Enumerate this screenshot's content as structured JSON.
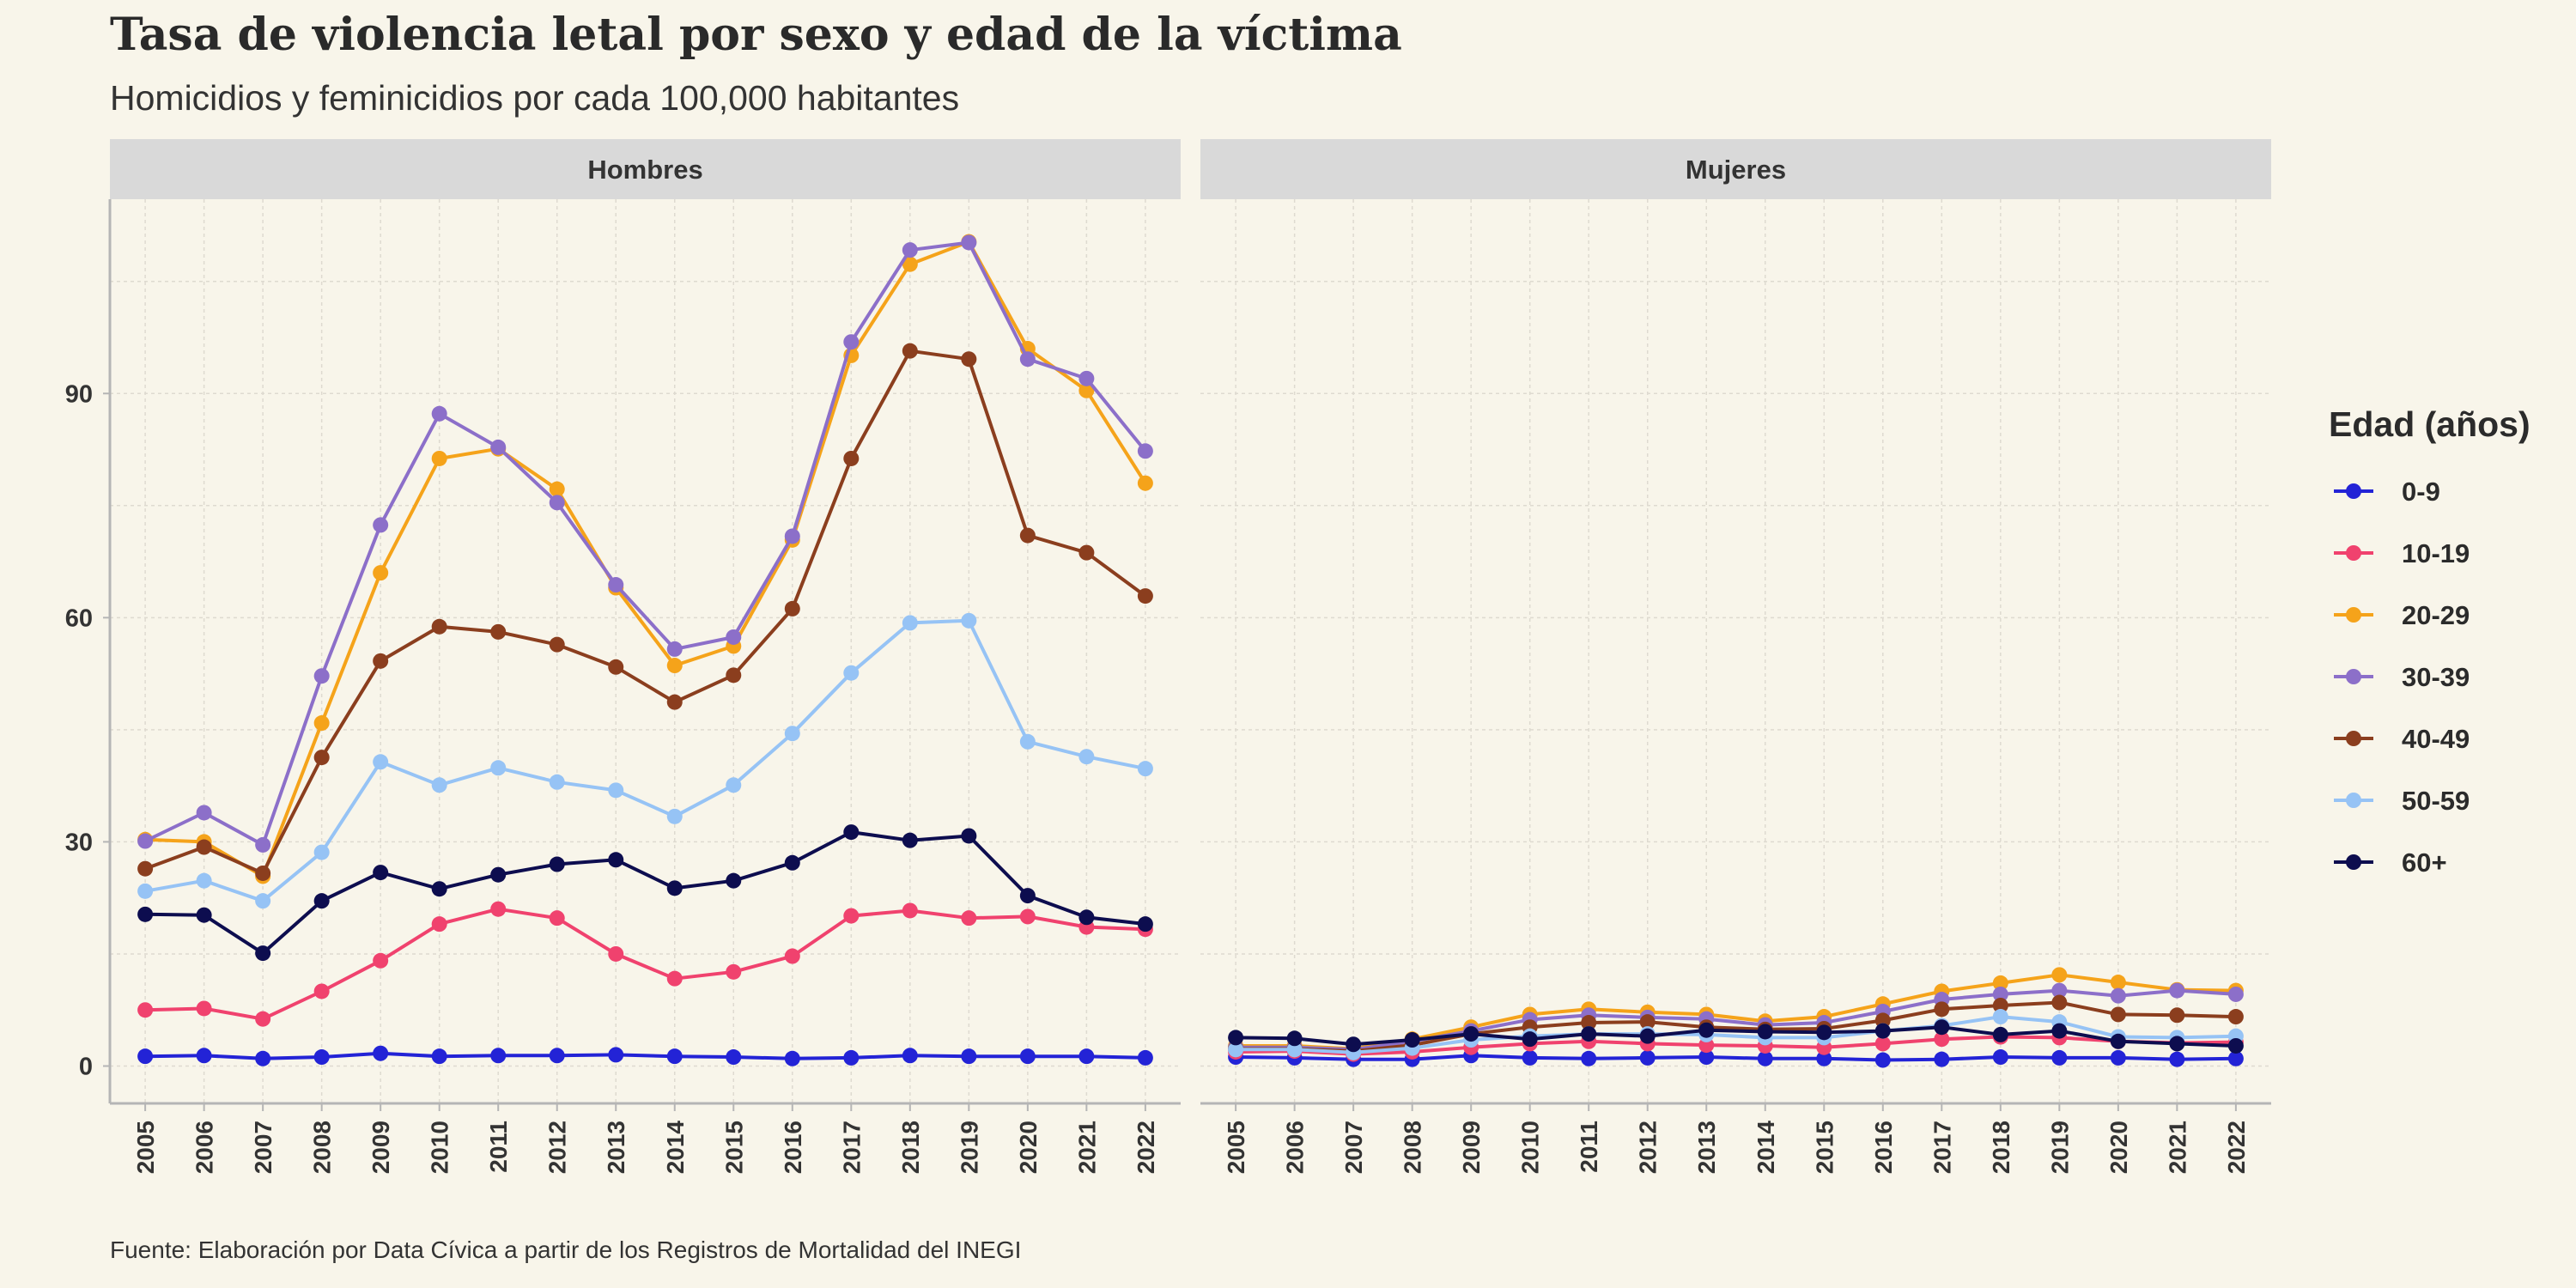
{
  "title": "Tasa de violencia letal por sexo y edad de la víctima",
  "subtitle": "Homicidios y feminicidios por cada 100,000 habitantes",
  "caption": "Fuente: Elaboración por Data Cívica a partir de los Registros de Mortalidad del INEGI",
  "chart_data": {
    "type": "line",
    "facets": [
      "Hombres",
      "Mujeres"
    ],
    "x": [
      2005,
      2006,
      2007,
      2008,
      2009,
      2010,
      2011,
      2012,
      2013,
      2014,
      2015,
      2016,
      2017,
      2018,
      2019,
      2020,
      2021,
      2022
    ],
    "y_ticks": [
      0,
      30,
      60,
      90
    ],
    "ylim": [
      -5,
      116
    ],
    "grid": true,
    "legend": {
      "title": "Edad (años)",
      "position": "right"
    },
    "series": [
      {
        "name": "0-9",
        "color": "#2323d6",
        "values": {
          "Hombres": [
            1.3,
            1.4,
            1.0,
            1.2,
            1.7,
            1.3,
            1.4,
            1.4,
            1.5,
            1.3,
            1.2,
            1.0,
            1.1,
            1.4,
            1.3,
            1.3,
            1.3,
            1.1
          ],
          "Mujeres": [
            1.2,
            1.1,
            0.9,
            0.9,
            1.4,
            1.1,
            1.0,
            1.1,
            1.2,
            1.0,
            1.0,
            0.8,
            0.9,
            1.2,
            1.1,
            1.1,
            0.9,
            1.0
          ]
        }
      },
      {
        "name": "10-19",
        "color": "#f0426e",
        "values": {
          "Hombres": [
            7.5,
            7.7,
            6.3,
            10.0,
            14.1,
            19.0,
            21.0,
            19.8,
            15.0,
            11.7,
            12.6,
            14.7,
            20.1,
            20.8,
            19.8,
            20.0,
            18.6,
            18.3
          ],
          "Mujeres": [
            1.9,
            2.0,
            1.6,
            1.9,
            2.5,
            3.0,
            3.3,
            3.0,
            2.8,
            2.7,
            2.5,
            3.0,
            3.6,
            3.9,
            3.8,
            3.3,
            3.1,
            3.2
          ]
        }
      },
      {
        "name": "20-29",
        "color": "#f5a31a",
        "values": {
          "Hombres": [
            30.3,
            30.0,
            25.4,
            45.9,
            66.0,
            81.3,
            82.6,
            77.2,
            64.0,
            53.6,
            56.2,
            70.4,
            95.1,
            107.3,
            110.3,
            96.0,
            90.4,
            78.0
          ],
          "Mujeres": [
            2.7,
            2.7,
            2.3,
            3.6,
            5.2,
            6.9,
            7.6,
            7.2,
            6.9,
            6.0,
            6.6,
            8.3,
            10.0,
            11.1,
            12.2,
            11.2,
            10.2,
            10.1
          ]
        }
      },
      {
        "name": "30-39",
        "color": "#8c6fc9",
        "values": {
          "Hombres": [
            30.1,
            33.9,
            29.6,
            52.2,
            72.4,
            87.3,
            82.8,
            75.4,
            64.4,
            55.8,
            57.4,
            70.9,
            96.9,
            109.2,
            110.2,
            94.6,
            92.0,
            82.3
          ],
          "Mujeres": [
            2.5,
            2.5,
            2.2,
            3.3,
            4.7,
            6.2,
            6.8,
            6.5,
            6.3,
            5.5,
            5.8,
            7.3,
            8.9,
            9.6,
            10.1,
            9.4,
            10.1,
            9.6
          ]
        }
      },
      {
        "name": "40-49",
        "color": "#8b3e1e",
        "values": {
          "Hombres": [
            26.4,
            29.3,
            25.8,
            41.3,
            54.2,
            58.8,
            58.1,
            56.4,
            53.4,
            48.7,
            52.3,
            61.2,
            81.3,
            95.7,
            94.6,
            71.0,
            68.7,
            62.9
          ],
          "Mujeres": [
            2.3,
            2.3,
            2.0,
            2.8,
            4.3,
            5.2,
            5.8,
            5.9,
            5.2,
            4.9,
            5.0,
            6.1,
            7.6,
            8.1,
            8.5,
            6.9,
            6.8,
            6.6
          ]
        }
      },
      {
        "name": "50-59",
        "color": "#96c3f5",
        "values": {
          "Hombres": [
            23.4,
            24.8,
            22.1,
            28.6,
            40.7,
            37.6,
            39.9,
            38.0,
            36.9,
            33.4,
            37.6,
            44.5,
            52.6,
            59.3,
            59.6,
            43.4,
            41.4,
            39.8
          ],
          "Mujeres": [
            2.2,
            2.2,
            1.8,
            2.4,
            3.5,
            4.0,
            4.3,
            4.3,
            4.2,
            3.8,
            3.8,
            4.7,
            5.4,
            6.6,
            5.9,
            3.9,
            3.8,
            4.0
          ]
        }
      },
      {
        "name": "60+",
        "color": "#0d0d4f",
        "values": {
          "Hombres": [
            20.3,
            20.2,
            15.1,
            22.1,
            25.9,
            23.7,
            25.6,
            27.0,
            27.6,
            23.8,
            24.8,
            27.2,
            31.3,
            30.2,
            30.8,
            22.8,
            19.9,
            19.0
          ],
          "Mujeres": [
            3.8,
            3.7,
            2.9,
            3.5,
            4.3,
            3.6,
            4.3,
            4.0,
            4.8,
            4.6,
            4.5,
            4.7,
            5.2,
            4.2,
            4.7,
            3.3,
            3.0,
            2.7
          ]
        }
      }
    ]
  }
}
